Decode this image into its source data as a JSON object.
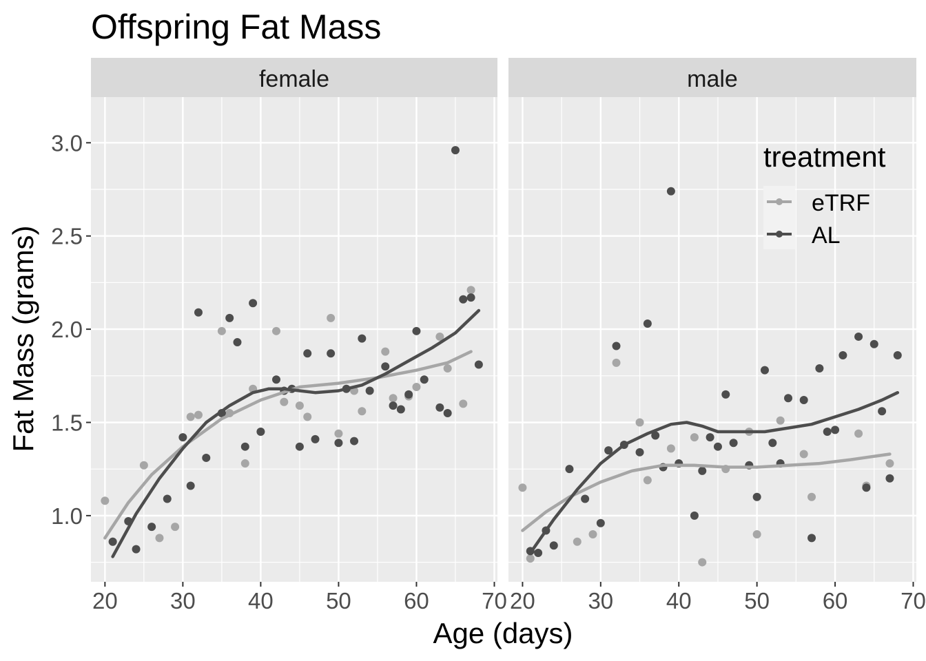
{
  "chart_data": {
    "type": "scatter",
    "title": "Offspring Fat Mass",
    "xlabel": "Age (days)",
    "ylabel": "Fat Mass (grams)",
    "xlim": [
      18.2,
      70.4
    ],
    "ylim": [
      0.645,
      3.245
    ],
    "x_ticks": [
      20,
      30,
      40,
      50,
      60,
      70
    ],
    "x_tick_labels": [
      "20",
      "30",
      "40",
      "50",
      "60",
      "70"
    ],
    "y_ticks": [
      1.0,
      1.5,
      2.0,
      2.5,
      3.0
    ],
    "y_tick_labels": [
      "1.0",
      "1.5",
      "2.0",
      "2.5",
      "3.0"
    ],
    "grid": true,
    "legend": {
      "title": "treatment",
      "placement": "top-right, inside male panel",
      "entries": [
        {
          "label": "eTRF",
          "color": "#a6a6a6"
        },
        {
          "label": "AL",
          "color": "#4d4d4d"
        }
      ]
    },
    "colors": {
      "eTRF": "#a6a6a6",
      "AL": "#4d4d4d",
      "panel_bg": "#ebebeb",
      "strip_bg": "#d9d9d9",
      "grid": "#ffffff"
    },
    "panels": [
      {
        "label": "female",
        "series": [
          {
            "name": "eTRF",
            "points": [
              [
                20,
                1.08
              ],
              [
                21,
                0.86
              ],
              [
                25,
                1.27
              ],
              [
                27,
                0.88
              ],
              [
                29,
                0.94
              ],
              [
                31,
                1.53
              ],
              [
                32,
                1.54
              ],
              [
                35,
                1.99
              ],
              [
                36,
                1.55
              ],
              [
                38,
                1.28
              ],
              [
                39,
                1.68
              ],
              [
                42,
                1.99
              ],
              [
                43,
                1.61
              ],
              [
                45,
                1.59
              ],
              [
                46,
                1.53
              ],
              [
                49,
                2.06
              ],
              [
                50,
                1.44
              ],
              [
                52,
                1.67
              ],
              [
                53,
                1.56
              ],
              [
                56,
                1.88
              ],
              [
                57,
                1.63
              ],
              [
                59,
                1.64
              ],
              [
                60,
                1.69
              ],
              [
                63,
                1.96
              ],
              [
                64,
                1.79
              ],
              [
                66,
                1.6
              ],
              [
                67,
                2.21
              ]
            ],
            "smooth": [
              [
                20,
                0.88
              ],
              [
                23,
                1.07
              ],
              [
                26,
                1.22
              ],
              [
                30,
                1.37
              ],
              [
                35,
                1.52
              ],
              [
                40,
                1.62
              ],
              [
                45,
                1.69
              ],
              [
                50,
                1.71
              ],
              [
                55,
                1.74
              ],
              [
                60,
                1.78
              ],
              [
                64,
                1.82
              ],
              [
                67,
                1.88
              ]
            ]
          },
          {
            "name": "AL",
            "points": [
              [
                21,
                0.86
              ],
              [
                23,
                0.97
              ],
              [
                24,
                0.82
              ],
              [
                26,
                0.94
              ],
              [
                28,
                1.09
              ],
              [
                30,
                1.42
              ],
              [
                31,
                1.16
              ],
              [
                32,
                2.09
              ],
              [
                33,
                1.31
              ],
              [
                35,
                1.55
              ],
              [
                36,
                2.06
              ],
              [
                37,
                1.93
              ],
              [
                38,
                1.37
              ],
              [
                39,
                2.14
              ],
              [
                40,
                1.45
              ],
              [
                42,
                1.73
              ],
              [
                43,
                1.67
              ],
              [
                44,
                1.68
              ],
              [
                45,
                1.37
              ],
              [
                46,
                1.87
              ],
              [
                47,
                1.41
              ],
              [
                49,
                1.87
              ],
              [
                50,
                1.39
              ],
              [
                51,
                1.68
              ],
              [
                52,
                1.4
              ],
              [
                53,
                1.95
              ],
              [
                54,
                1.67
              ],
              [
                56,
                1.8
              ],
              [
                57,
                1.59
              ],
              [
                58,
                1.57
              ],
              [
                59,
                1.65
              ],
              [
                60,
                1.99
              ],
              [
                61,
                1.73
              ],
              [
                63,
                1.58
              ],
              [
                64,
                1.55
              ],
              [
                65,
                2.96
              ],
              [
                66,
                2.16
              ],
              [
                67,
                2.17
              ],
              [
                68,
                1.81
              ]
            ],
            "smooth": [
              [
                21,
                0.78
              ],
              [
                24,
                1.01
              ],
              [
                27,
                1.2
              ],
              [
                30,
                1.36
              ],
              [
                33,
                1.5
              ],
              [
                36,
                1.59
              ],
              [
                39,
                1.66
              ],
              [
                41,
                1.68
              ],
              [
                43,
                1.68
              ],
              [
                45,
                1.67
              ],
              [
                47,
                1.66
              ],
              [
                50,
                1.67
              ],
              [
                53,
                1.7
              ],
              [
                56,
                1.76
              ],
              [
                59,
                1.83
              ],
              [
                62,
                1.9
              ],
              [
                65,
                1.98
              ],
              [
                68,
                2.1
              ]
            ]
          }
        ]
      },
      {
        "label": "male",
        "series": [
          {
            "name": "eTRF",
            "points": [
              [
                20,
                1.15
              ],
              [
                21,
                0.77
              ],
              [
                27,
                0.86
              ],
              [
                29,
                0.9
              ],
              [
                32,
                1.82
              ],
              [
                35,
                1.5
              ],
              [
                36,
                1.19
              ],
              [
                39,
                1.36
              ],
              [
                42,
                1.42
              ],
              [
                43,
                0.75
              ],
              [
                46,
                1.25
              ],
              [
                49,
                1.45
              ],
              [
                50,
                0.9
              ],
              [
                53,
                1.51
              ],
              [
                56,
                1.33
              ],
              [
                57,
                1.1
              ],
              [
                63,
                1.44
              ],
              [
                64,
                1.16
              ],
              [
                67,
                1.28
              ]
            ],
            "smooth": [
              [
                20,
                0.92
              ],
              [
                23,
                1.02
              ],
              [
                26,
                1.1
              ],
              [
                30,
                1.18
              ],
              [
                34,
                1.24
              ],
              [
                38,
                1.27
              ],
              [
                42,
                1.27
              ],
              [
                46,
                1.26
              ],
              [
                50,
                1.26
              ],
              [
                54,
                1.27
              ],
              [
                58,
                1.28
              ],
              [
                62,
                1.3
              ],
              [
                67,
                1.33
              ]
            ]
          },
          {
            "name": "AL",
            "points": [
              [
                21,
                0.81
              ],
              [
                22,
                0.8
              ],
              [
                23,
                0.92
              ],
              [
                24,
                0.84
              ],
              [
                26,
                1.25
              ],
              [
                28,
                1.09
              ],
              [
                30,
                0.96
              ],
              [
                31,
                1.35
              ],
              [
                32,
                1.91
              ],
              [
                33,
                1.38
              ],
              [
                35,
                1.34
              ],
              [
                36,
                2.03
              ],
              [
                37,
                1.43
              ],
              [
                38,
                1.26
              ],
              [
                39,
                2.74
              ],
              [
                40,
                1.28
              ],
              [
                42,
                1.0
              ],
              [
                43,
                1.24
              ],
              [
                44,
                1.42
              ],
              [
                45,
                1.37
              ],
              [
                46,
                1.65
              ],
              [
                47,
                1.39
              ],
              [
                49,
                1.27
              ],
              [
                50,
                1.1
              ],
              [
                51,
                1.78
              ],
              [
                52,
                1.39
              ],
              [
                53,
                1.28
              ],
              [
                54,
                1.63
              ],
              [
                56,
                1.62
              ],
              [
                57,
                0.88
              ],
              [
                58,
                1.79
              ],
              [
                59,
                1.45
              ],
              [
                60,
                1.46
              ],
              [
                61,
                1.86
              ],
              [
                63,
                1.96
              ],
              [
                64,
                1.15
              ],
              [
                65,
                1.92
              ],
              [
                66,
                1.56
              ],
              [
                67,
                1.2
              ],
              [
                68,
                1.86
              ]
            ],
            "smooth": [
              [
                21,
                0.8
              ],
              [
                24,
                0.98
              ],
              [
                27,
                1.14
              ],
              [
                30,
                1.28
              ],
              [
                33,
                1.38
              ],
              [
                36,
                1.44
              ],
              [
                39,
                1.49
              ],
              [
                41,
                1.5
              ],
              [
                43,
                1.48
              ],
              [
                45,
                1.45
              ],
              [
                48,
                1.45
              ],
              [
                51,
                1.45
              ],
              [
                54,
                1.47
              ],
              [
                57,
                1.49
              ],
              [
                60,
                1.53
              ],
              [
                63,
                1.57
              ],
              [
                66,
                1.62
              ],
              [
                68,
                1.66
              ]
            ]
          }
        ]
      }
    ]
  }
}
